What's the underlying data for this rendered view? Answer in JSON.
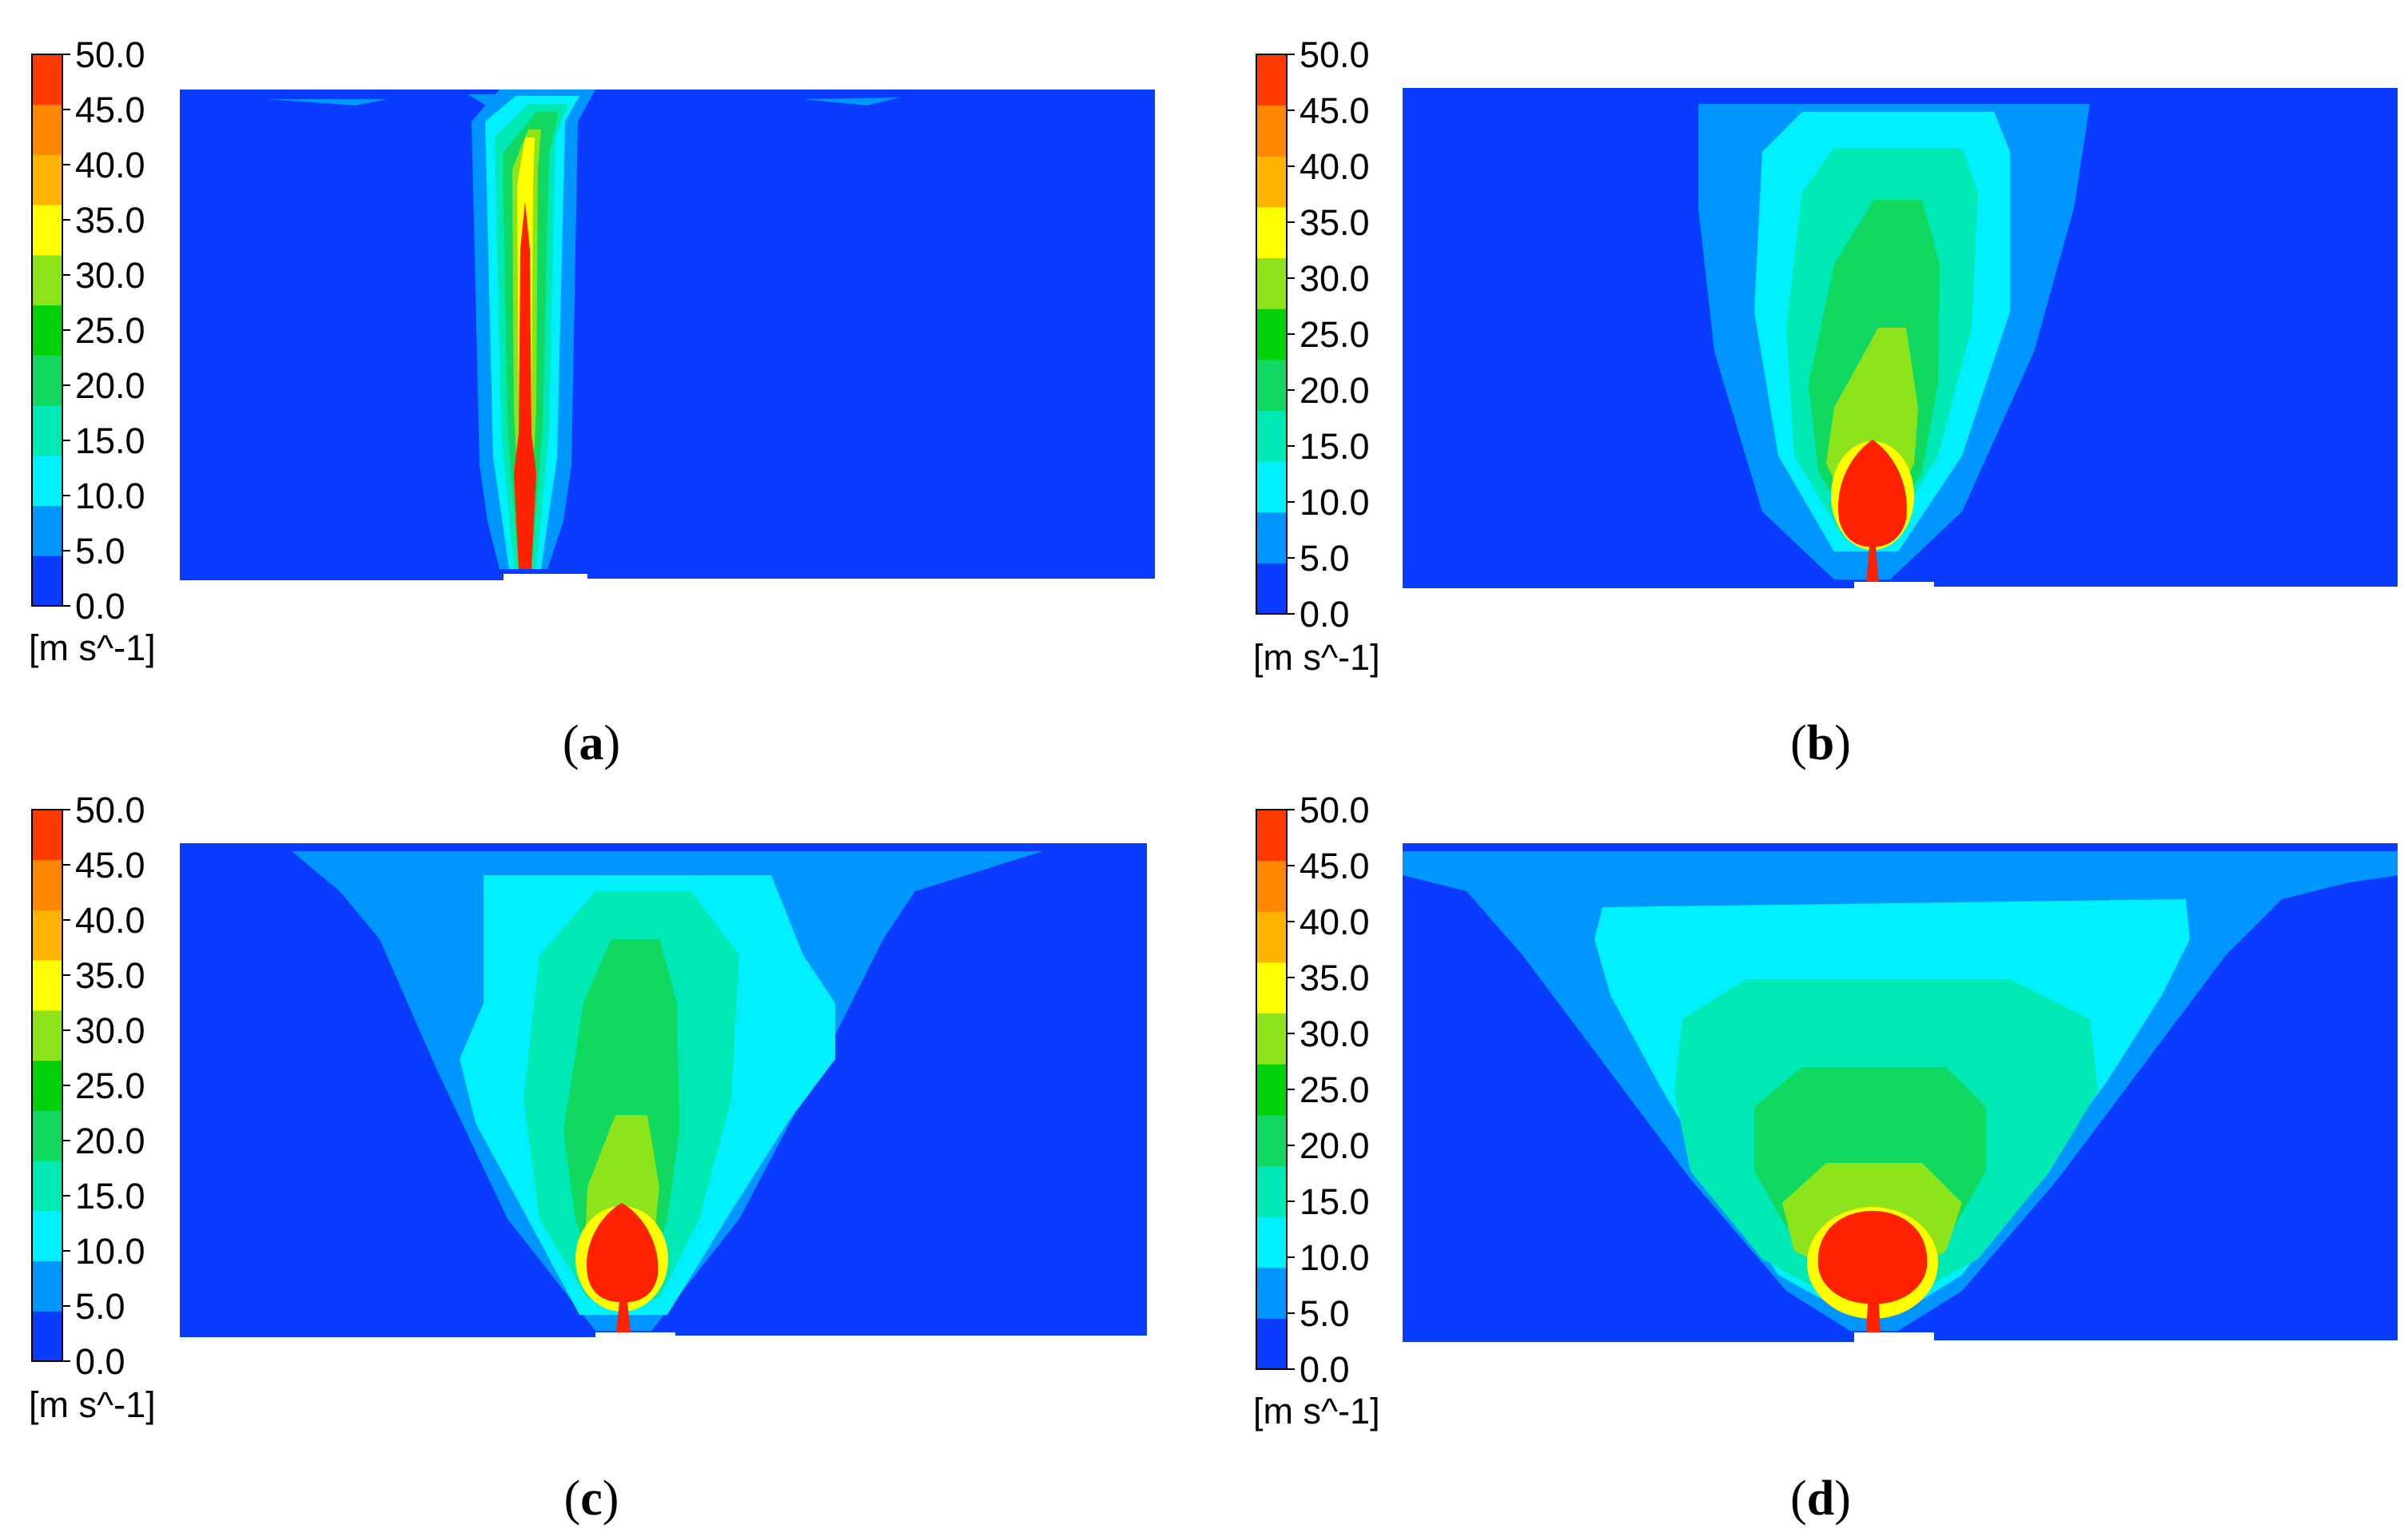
{
  "colorbar": {
    "tick_labels": [
      "50.0",
      "45.0",
      "40.0",
      "35.0",
      "30.0",
      "25.0",
      "20.0",
      "15.0",
      "10.0",
      "5.0",
      "0.0"
    ],
    "unit": "[m s^-1]",
    "band_colors": [
      "#0a3cff",
      "#0096ff",
      "#00f0ff",
      "#00e8b4",
      "#10d860",
      "#00d10a",
      "#8ee41a",
      "#ffff00",
      "#ffb400",
      "#ff8800",
      "#ff3a00"
    ]
  },
  "field_colors": {
    "background": "#0a3cff",
    "band_5": "#0096ff",
    "band_10": "#00f0ff",
    "band_15": "#00e8b4",
    "band_20": "#10d860",
    "band_25": "#00d10a",
    "band_35": "#8ee41a",
    "band_40": "#ffff00",
    "band_50": "#ff2200"
  },
  "panels": [
    {
      "id": "a",
      "letter": "a"
    },
    {
      "id": "b",
      "letter": "b"
    },
    {
      "id": "c",
      "letter": "c"
    },
    {
      "id": "d",
      "letter": "d"
    }
  ]
}
